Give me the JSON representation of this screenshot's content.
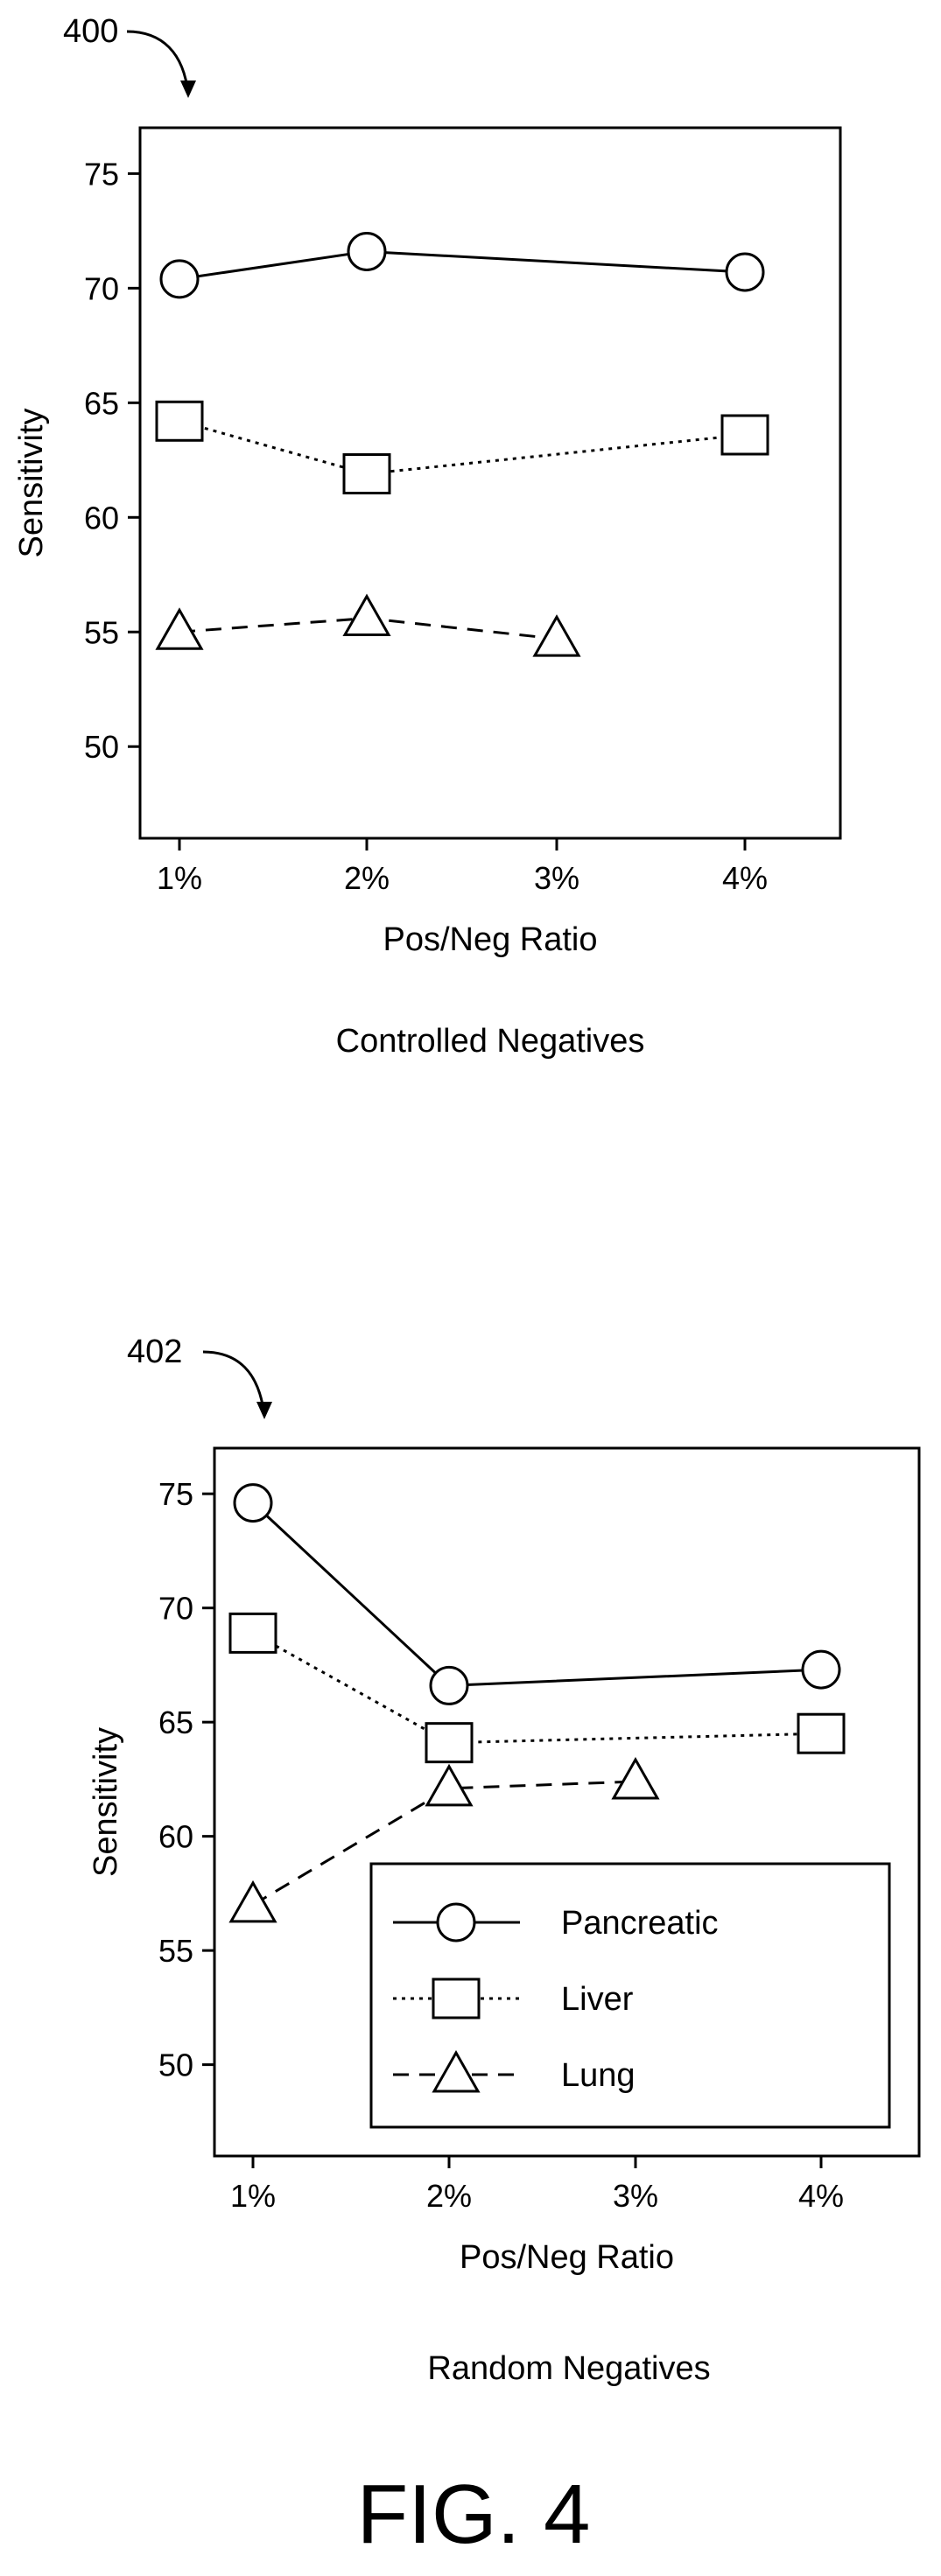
{
  "figure_label": "FIG. 4",
  "chart_data": [
    {
      "type": "line",
      "ref_label": "400",
      "caption": "Controlled Negatives",
      "xlabel": "Pos/Neg Ratio",
      "ylabel": "Sensitivity",
      "x_categories": [
        "1%",
        "2%",
        "3%",
        "4%"
      ],
      "x_values": [
        1,
        2,
        3,
        4
      ],
      "ylim": [
        46,
        77
      ],
      "y_ticks": [
        50,
        55,
        60,
        65,
        70,
        75
      ],
      "grid": false,
      "legend": null,
      "series": [
        {
          "name": "Pancreatic",
          "marker": "circle",
          "line_style": "solid",
          "x": [
            1,
            2,
            4
          ],
          "y": [
            70.4,
            71.6,
            70.7
          ]
        },
        {
          "name": "Liver",
          "marker": "square",
          "line_style": "dotted",
          "x": [
            1,
            2,
            4
          ],
          "y": [
            64.2,
            61.9,
            63.6
          ]
        },
        {
          "name": "Lung",
          "marker": "triangle",
          "line_style": "dashed",
          "x": [
            1,
            2,
            3
          ],
          "y": [
            55.0,
            55.6,
            54.7
          ]
        }
      ]
    },
    {
      "type": "line",
      "ref_label": "402",
      "caption": "Random Negatives",
      "xlabel": "Pos/Neg Ratio",
      "ylabel": "Sensitivity",
      "x_categories": [
        "1%",
        "2%",
        "3%",
        "4%"
      ],
      "x_values": [
        1,
        2,
        3,
        4
      ],
      "ylim": [
        46,
        77
      ],
      "y_ticks": [
        50,
        55,
        60,
        65,
        70,
        75
      ],
      "grid": false,
      "legend": {
        "position": "lower-right",
        "entries": [
          "Pancreatic",
          "Liver",
          "Lung"
        ]
      },
      "series": [
        {
          "name": "Pancreatic",
          "marker": "circle",
          "line_style": "solid",
          "x": [
            1,
            2,
            4
          ],
          "y": [
            74.6,
            66.6,
            67.3
          ]
        },
        {
          "name": "Liver",
          "marker": "square",
          "line_style": "dotted",
          "x": [
            1,
            2,
            4
          ],
          "y": [
            68.9,
            64.1,
            64.5
          ]
        },
        {
          "name": "Lung",
          "marker": "triangle",
          "line_style": "dashed",
          "x": [
            1,
            2,
            3
          ],
          "y": [
            57.0,
            62.1,
            62.4
          ]
        }
      ]
    }
  ]
}
